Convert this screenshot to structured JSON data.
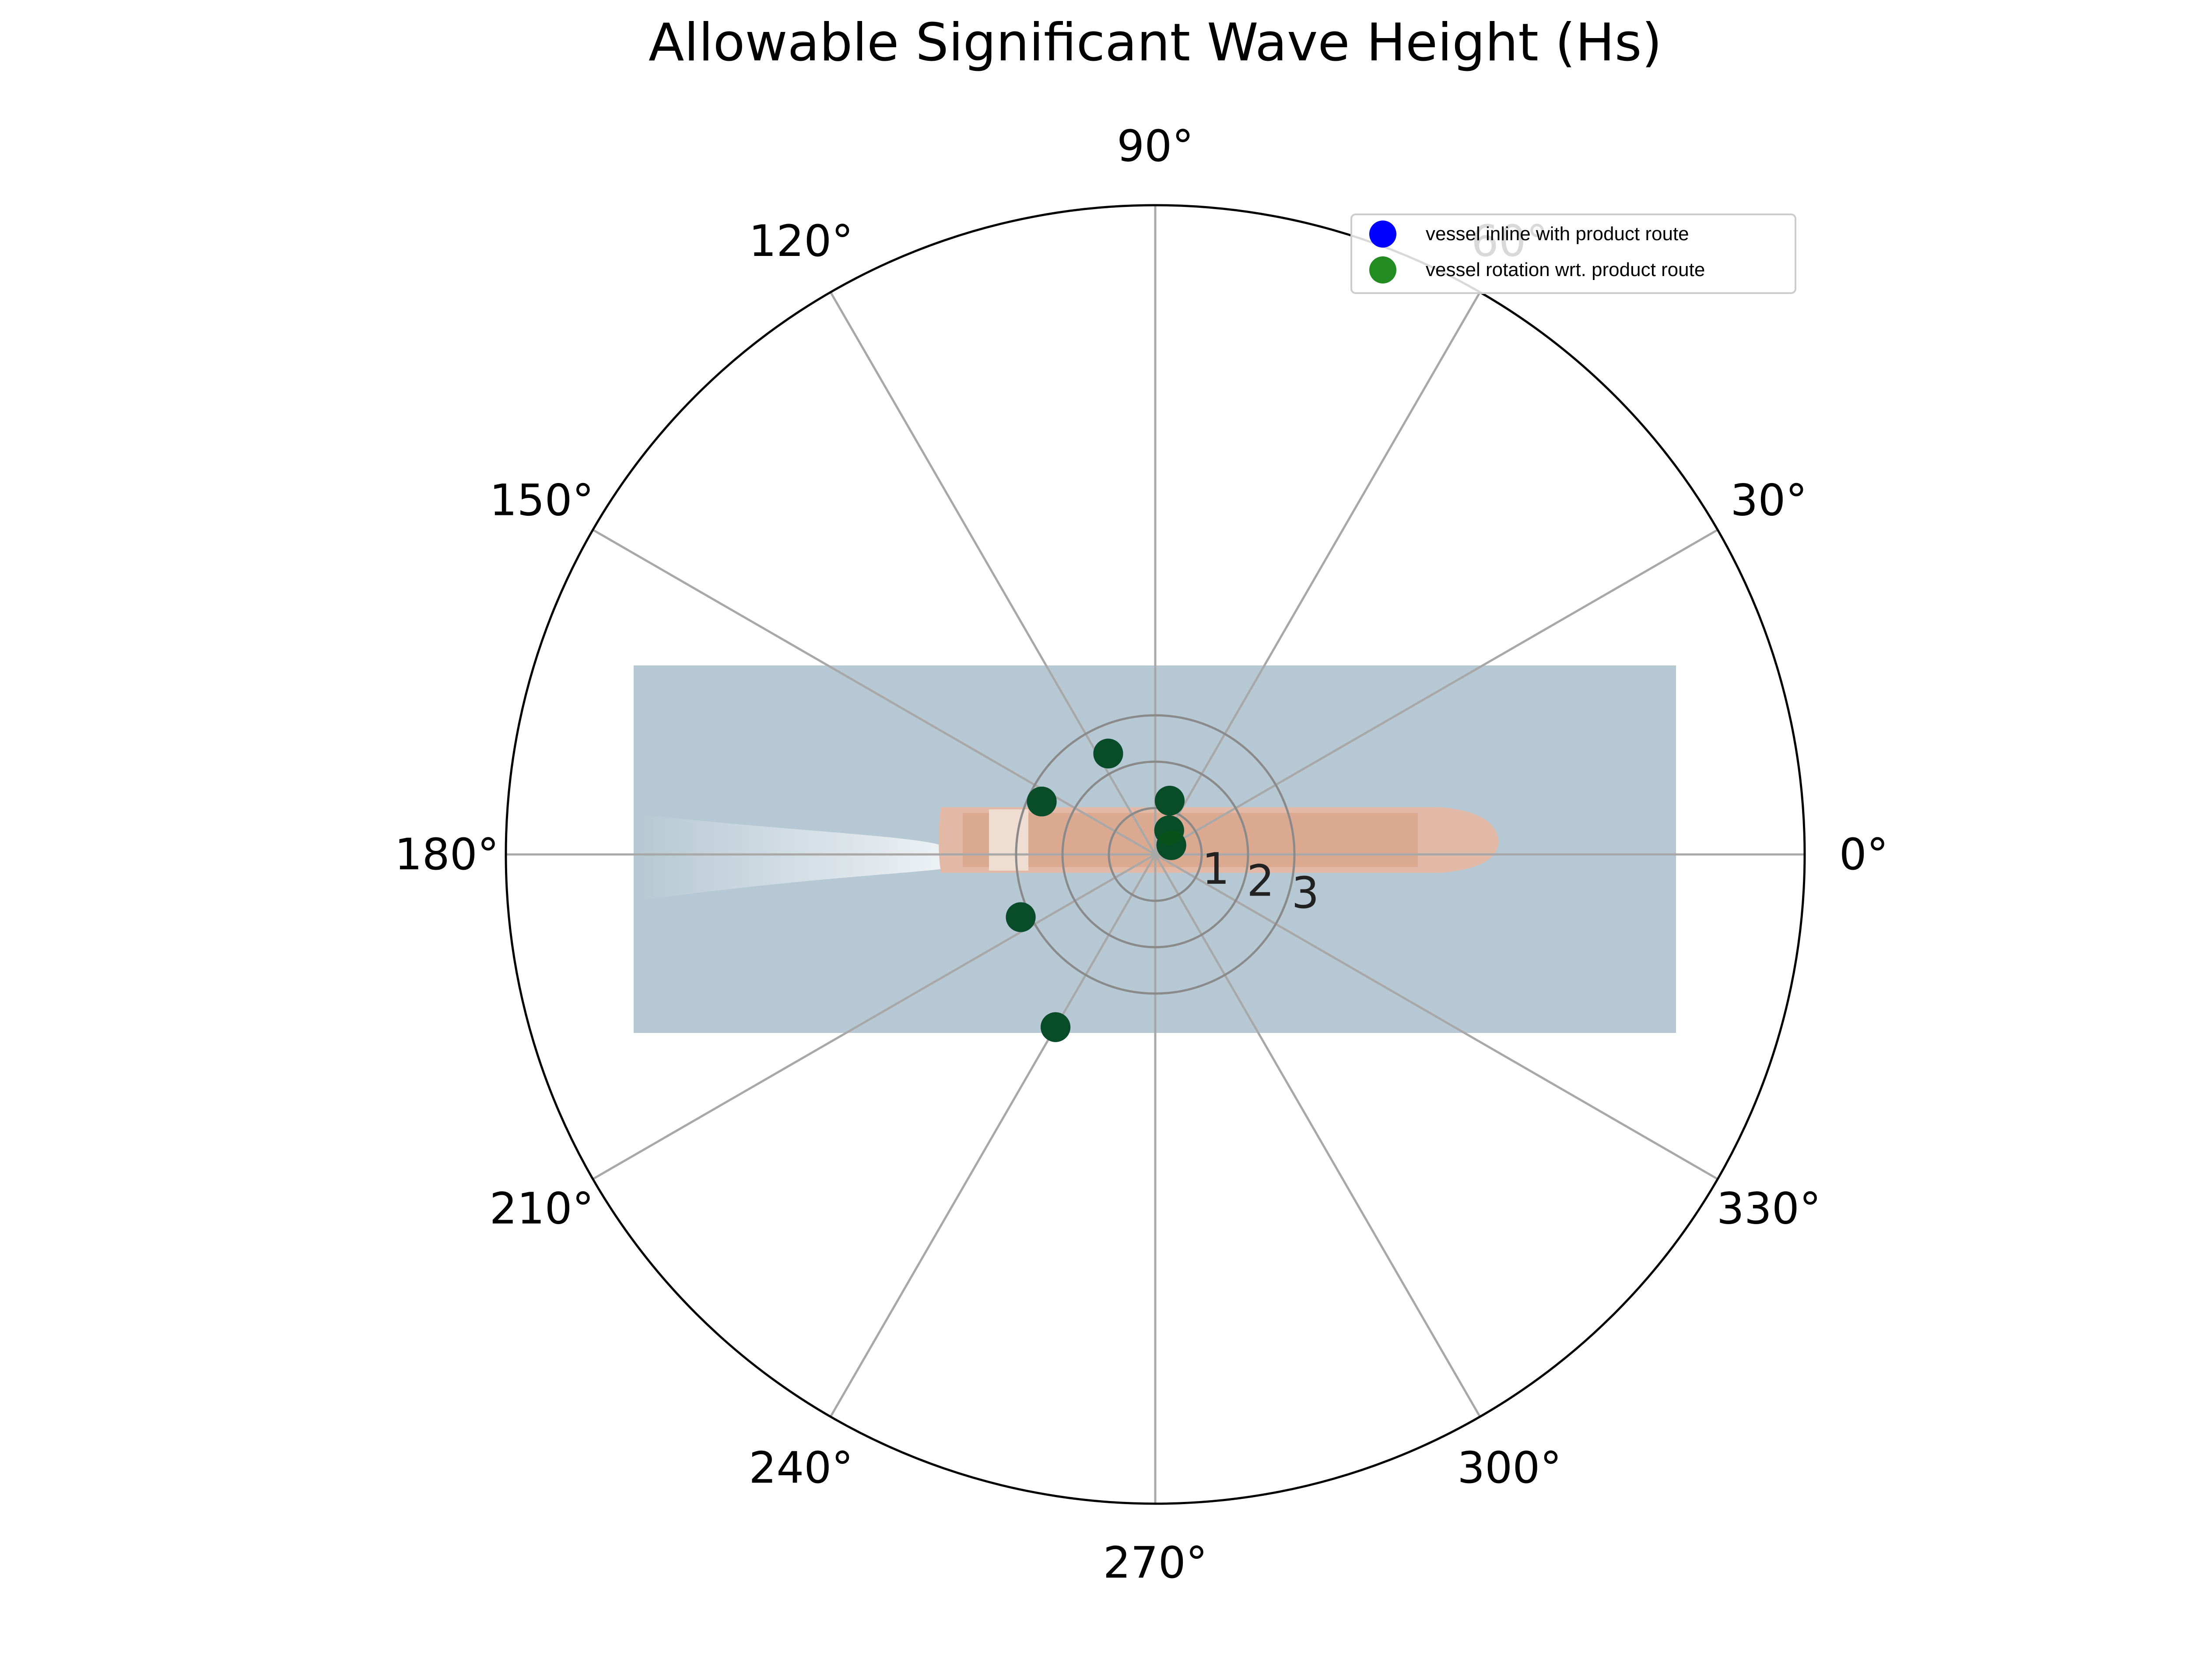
{
  "chart_data": {
    "type": "scatter",
    "projection": "polar",
    "title": "Allowable Significant Wave Height (Hs)",
    "theta_ticks": [
      "0°",
      "30°",
      "60°",
      "90°",
      "120°",
      "150°",
      "180°",
      "210°",
      "240°",
      "270°",
      "300°",
      "330°"
    ],
    "theta_tick_values_deg": [
      0,
      30,
      60,
      90,
      120,
      150,
      180,
      210,
      240,
      270,
      300,
      330
    ],
    "r_ticks": [
      "1",
      "2",
      "3"
    ],
    "r_tick_values": [
      1,
      2,
      3
    ],
    "rlim": [
      0,
      14
    ],
    "grid": true,
    "background_image": "aerial photo of a container ship heading toward 0°",
    "legend": {
      "position": "top-right",
      "entries": [
        {
          "label": "vessel inline with product route",
          "color": "#0000ff"
        },
        {
          "label": "vessel rotation wrt. product route",
          "color": "#228b22"
        }
      ]
    },
    "series": [
      {
        "name": "vessel inline with product route",
        "color": "#0000ff",
        "points": [
          {
            "theta": 60,
            "r": 0.6
          },
          {
            "theta": 75,
            "r": 1.2
          },
          {
            "theta": 115,
            "r": 2.4
          },
          {
            "theta": 155,
            "r": 2.7
          },
          {
            "theta": 205,
            "r": 3.2
          },
          {
            "theta": 240,
            "r": 4.3
          },
          {
            "theta": 30,
            "r": 0.4
          }
        ]
      },
      {
        "name": "vessel rotation wrt. product route",
        "color": "#228b22",
        "points": [
          {
            "theta": 60,
            "r": 0.6
          },
          {
            "theta": 75,
            "r": 1.2
          },
          {
            "theta": 115,
            "r": 2.4
          },
          {
            "theta": 155,
            "r": 2.7
          },
          {
            "theta": 205,
            "r": 3.2
          },
          {
            "theta": 240,
            "r": 4.3
          },
          {
            "theta": 30,
            "r": 0.4
          }
        ]
      }
    ]
  }
}
